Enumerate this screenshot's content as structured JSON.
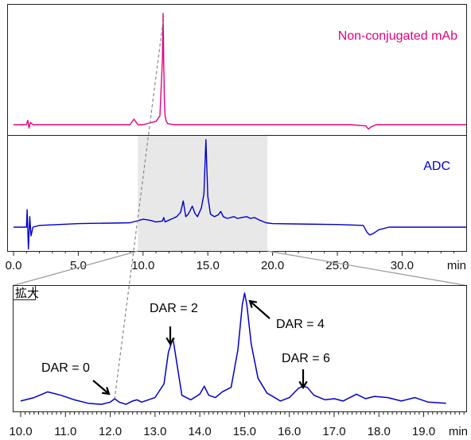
{
  "chart_data": [
    {
      "type": "line",
      "title": "",
      "xlabel": "min",
      "xlim": [
        0,
        35
      ],
      "x_ticks": [
        "0.0",
        "5.0",
        "10.0",
        "15.0",
        "20.0",
        "25.0",
        "30.0"
      ],
      "x_unit_label": "min",
      "grid": false,
      "highlight_range": [
        9.6,
        19.6
      ],
      "series": [
        {
          "name": "Non-conjugated mAb",
          "color": "#e6007e",
          "x": [
            0.0,
            1.0,
            1.1,
            1.2,
            1.3,
            1.5,
            5.0,
            9.0,
            9.3,
            9.6,
            10.0,
            11.0,
            11.3,
            11.5,
            11.55,
            11.6,
            11.65,
            11.7,
            11.8,
            11.9,
            12.1,
            12.5,
            14.0,
            20.0,
            26.0,
            27.2,
            27.4,
            27.6,
            28.0,
            30.0,
            35.0
          ],
          "y": [
            0.0,
            0.0,
            0.04,
            -0.03,
            0.02,
            0.0,
            0.0,
            0.0,
            0.05,
            0.0,
            0.0,
            0.03,
            0.08,
            0.6,
            1.0,
            0.55,
            0.2,
            0.08,
            0.03,
            0.01,
            0.005,
            0.0,
            0.0,
            0.0,
            0.0,
            -0.01,
            -0.04,
            -0.02,
            0.0,
            0.0,
            0.0
          ]
        },
        {
          "name": "ADC",
          "color": "#0000cc",
          "x": [
            0.0,
            1.0,
            1.05,
            1.15,
            1.25,
            1.35,
            1.5,
            2.0,
            5.0,
            9.0,
            10.0,
            10.5,
            11.0,
            11.5,
            11.6,
            11.7,
            12.0,
            12.3,
            12.6,
            12.9,
            13.1,
            13.3,
            13.5,
            13.8,
            14.0,
            14.2,
            14.5,
            14.7,
            14.85,
            15.0,
            15.2,
            15.5,
            15.8,
            16.0,
            16.2,
            16.5,
            17.0,
            17.3,
            17.6,
            18.0,
            18.3,
            18.6,
            19.0,
            19.5,
            20.0,
            25.0,
            27.0,
            27.3,
            27.5,
            27.8,
            28.2,
            29.0,
            30.0,
            35.0
          ],
          "y": [
            0.0,
            0.0,
            0.2,
            -0.25,
            0.12,
            -0.1,
            0.0,
            0.02,
            0.04,
            0.05,
            0.09,
            0.08,
            0.06,
            0.07,
            0.11,
            0.06,
            0.08,
            0.1,
            0.12,
            0.17,
            0.3,
            0.12,
            0.15,
            0.24,
            0.16,
            0.12,
            0.22,
            0.38,
            1.0,
            0.35,
            0.15,
            0.12,
            0.14,
            0.18,
            0.12,
            0.1,
            0.12,
            0.1,
            0.11,
            0.12,
            0.1,
            0.11,
            0.08,
            0.05,
            0.04,
            0.03,
            0.02,
            -0.06,
            -0.09,
            -0.07,
            -0.03,
            0.0,
            0.0,
            0.0
          ]
        }
      ]
    },
    {
      "type": "line",
      "title": "",
      "xlabel": "min",
      "xlim": [
        10.0,
        19.5
      ],
      "x_ticks": [
        "10.0",
        "11.0",
        "12.0",
        "13.0",
        "14.0",
        "15.0",
        "16.0",
        "17.0",
        "18.0",
        "19.0"
      ],
      "x_unit_label": "min",
      "grid": false,
      "inset_label": "拡大",
      "annotations": [
        {
          "text": "DAR = 0",
          "x": 12.05
        },
        {
          "text": "DAR = 2",
          "x": 13.4
        },
        {
          "text": "DAR = 4",
          "x": 15.1
        },
        {
          "text": "DAR = 6",
          "x": 16.4
        }
      ],
      "series": [
        {
          "name": "ADC",
          "color": "#0000cc",
          "x": [
            10.0,
            10.3,
            10.6,
            10.9,
            11.2,
            11.5,
            11.8,
            12.0,
            12.1,
            12.2,
            12.35,
            12.5,
            12.6,
            12.7,
            12.85,
            13.0,
            13.2,
            13.3,
            13.4,
            13.5,
            13.6,
            13.8,
            14.0,
            14.1,
            14.2,
            14.35,
            14.5,
            14.7,
            14.85,
            14.95,
            15.0,
            15.05,
            15.15,
            15.3,
            15.5,
            15.8,
            16.0,
            16.2,
            16.3,
            16.4,
            16.55,
            16.8,
            17.0,
            17.2,
            17.5,
            17.7,
            17.9,
            18.2,
            18.5,
            18.8,
            19.1,
            19.5
          ],
          "y": [
            0.05,
            0.08,
            0.13,
            0.1,
            0.06,
            0.03,
            0.02,
            0.04,
            0.07,
            0.04,
            0.02,
            0.05,
            0.06,
            0.04,
            0.06,
            0.08,
            0.2,
            0.48,
            0.6,
            0.35,
            0.1,
            0.06,
            0.11,
            0.18,
            0.1,
            0.08,
            0.13,
            0.17,
            0.5,
            0.9,
            1.0,
            0.9,
            0.55,
            0.25,
            0.12,
            0.05,
            0.08,
            0.16,
            0.18,
            0.17,
            0.1,
            0.06,
            0.07,
            0.05,
            0.11,
            0.07,
            0.09,
            0.08,
            0.05,
            0.08,
            0.04,
            0.03
          ]
        }
      ]
    }
  ]
}
